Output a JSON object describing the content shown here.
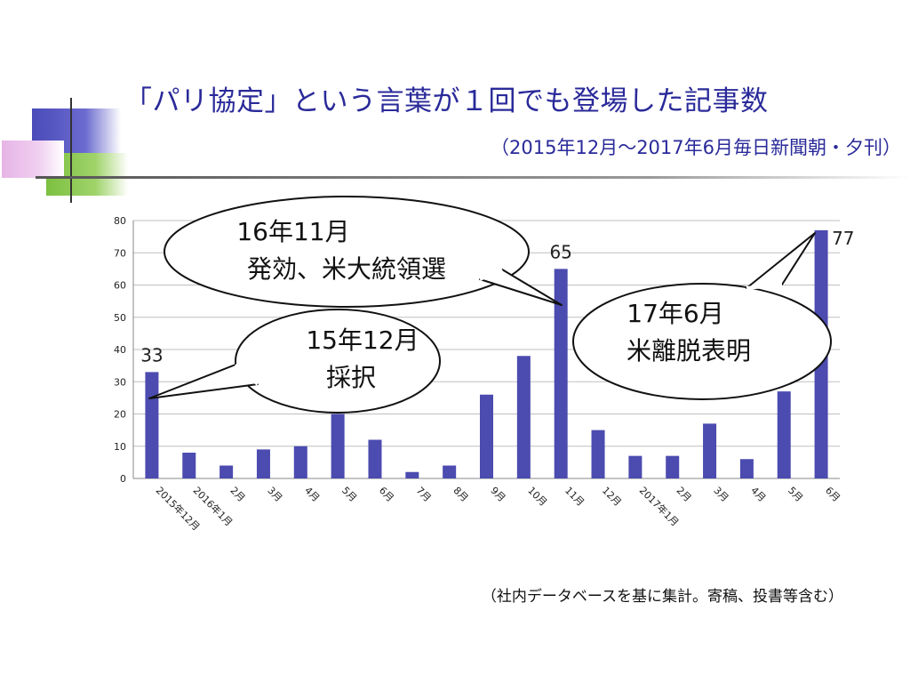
{
  "slide": {
    "title": "「パリ協定」という言葉が１回でも登場した記事数",
    "subtitle": "（2015年12月～2017年6月毎日新聞朝・夕刊）",
    "footnote": "（社内データベースを基に集計。寄稿、投書等含む）"
  },
  "colors": {
    "bar": "#4b4bb0",
    "title": "#2a2a9a",
    "deco_blue": "#4a4aba",
    "deco_green": "#7cc040",
    "deco_pink": "#e6b4e6",
    "grid": "#bfbfbf"
  },
  "chart_data": {
    "type": "bar",
    "categories": [
      "2015年12月",
      "2016年1月",
      "2月",
      "3月",
      "4月",
      "5月",
      "6月",
      "7月",
      "8月",
      "9月",
      "10月",
      "11月",
      "12月",
      "2017年1月",
      "2月",
      "3月",
      "4月",
      "5月",
      "6月"
    ],
    "values": [
      33,
      8,
      4,
      9,
      10,
      20,
      12,
      2,
      4,
      26,
      38,
      65,
      15,
      7,
      7,
      17,
      6,
      27,
      77
    ],
    "ylim": [
      0,
      80
    ],
    "yticks": [
      "0",
      "10",
      "20",
      "30",
      "40",
      "50",
      "60",
      "70",
      "80"
    ],
    "grid": true,
    "data_labels": [
      {
        "index": 0,
        "text": "33"
      },
      {
        "index": 11,
        "text": "65"
      },
      {
        "index": 18,
        "text": "77"
      }
    ],
    "annotations": [
      {
        "index": 0,
        "lines": [
          "15年12月",
          "採択"
        ]
      },
      {
        "index": 11,
        "lines": [
          "16年11月",
          "発効、米大統領選"
        ]
      },
      {
        "index": 18,
        "lines": [
          "17年6月",
          "米離脱表明"
        ]
      }
    ]
  }
}
